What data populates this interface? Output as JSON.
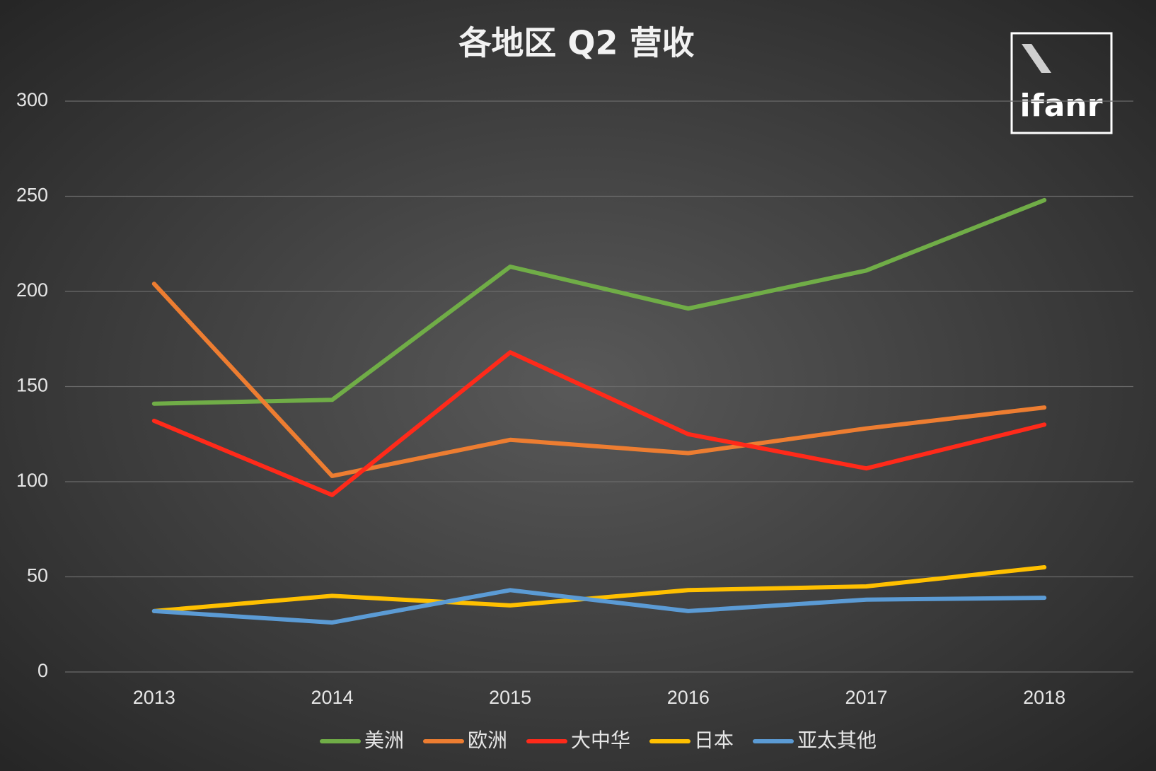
{
  "chart_data": {
    "type": "line",
    "title": "各地区 Q2 营收",
    "logo": "ifanr",
    "categories": [
      "2013",
      "2014",
      "2015",
      "2016",
      "2017",
      "2018"
    ],
    "series": [
      {
        "name": "美洲",
        "color": "#70ad47",
        "values": [
          141,
          143,
          213,
          191,
          211,
          248
        ]
      },
      {
        "name": "欧洲",
        "color": "#ed7d31",
        "values": [
          204,
          103,
          122,
          115,
          128,
          139
        ]
      },
      {
        "name": "大中华",
        "color": "#ff2a1a",
        "values": [
          132,
          93,
          168,
          125,
          107,
          130
        ]
      },
      {
        "name": "日本",
        "color": "#ffc000",
        "values": [
          32,
          40,
          35,
          43,
          45,
          55
        ]
      },
      {
        "name": "亚太其他",
        "color": "#5b9bd5",
        "values": [
          32,
          26,
          43,
          32,
          38,
          39
        ]
      }
    ],
    "ylim": [
      0,
      300
    ],
    "yticks": [
      0,
      50,
      100,
      150,
      200,
      250,
      300
    ],
    "grid": true,
    "legend": "bottom"
  }
}
